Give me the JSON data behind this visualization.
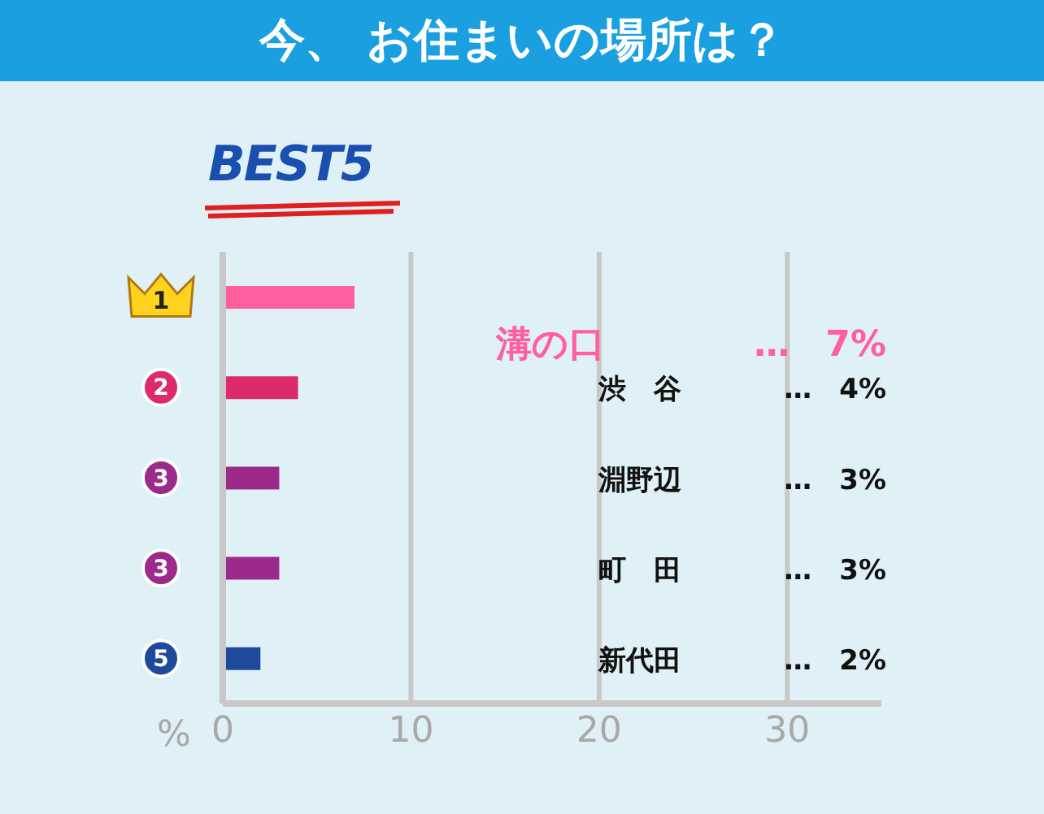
{
  "chart_data": {
    "type": "bar",
    "orientation": "horizontal",
    "title": "今、 お住まいの場所は？",
    "subtitle": "BEST5",
    "categories": [
      "溝の口",
      "渋　谷",
      "淵野辺",
      "町　田",
      "新代田"
    ],
    "values": [
      7,
      4,
      3,
      3,
      2
    ],
    "colors": [
      "#ff5fa0",
      "#dc2a6a",
      "#9b2a8a",
      "#9b2a8a",
      "#1f4a9c"
    ],
    "value_labels": [
      "…　7%",
      "…　4%",
      "…　3%",
      "…　3%",
      "…　2%"
    ],
    "annotations": [
      "1",
      "2",
      "3",
      "3",
      "5"
    ],
    "xlabel": "%",
    "xlim": [
      0,
      35
    ],
    "xticks": [
      0,
      10,
      20,
      30
    ],
    "grid": "x",
    "legend": false
  }
}
